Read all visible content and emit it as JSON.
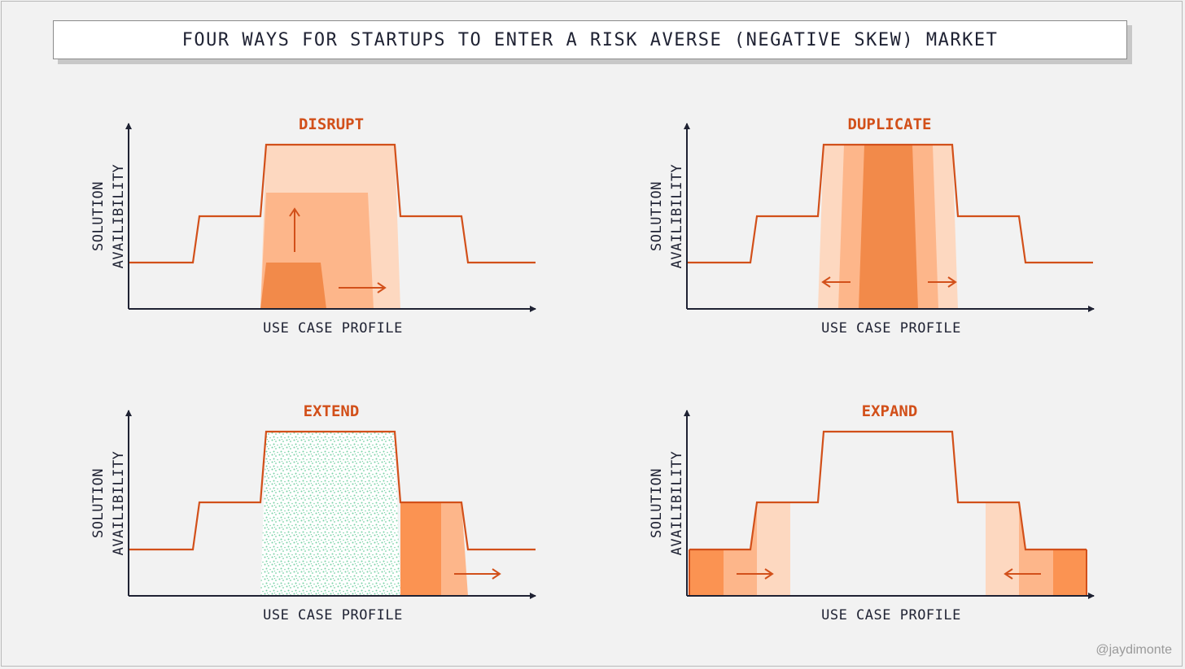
{
  "title": "FOUR WAYS FOR STARTUPS TO ENTER A RISK AVERSE (NEGATIVE SKEW) MARKET",
  "watermark": "@jaydimonte",
  "colors": {
    "accent": "#d2501a",
    "light": "#fdd8c0",
    "medium": "#fdb68a",
    "dark": "#f28a4a",
    "stronger": "#fb9352",
    "axis": "#1f2233",
    "texture": "#79d1a6"
  },
  "panels": [
    {
      "id": "disrupt",
      "title": "DISRUPT",
      "y_label_line1": "SOLUTION",
      "y_label_line2": "AVAILIBILITY",
      "x_label": "USE CASE PROFILE"
    },
    {
      "id": "duplicate",
      "title": "DUPLICATE",
      "y_label_line1": "SOLUTION",
      "y_label_line2": "AVAILIBILITY",
      "x_label": "USE CASE PROFILE"
    },
    {
      "id": "extend",
      "title": "EXTEND",
      "y_label_line1": "SOLUTION",
      "y_label_line2": "AVAILIBILITY",
      "x_label": "USE CASE PROFILE"
    },
    {
      "id": "expand",
      "title": "EXPAND",
      "y_label_line1": "SOLUTION",
      "y_label_line2": "AVAILIBILITY",
      "x_label": "USE CASE PROFILE"
    }
  ]
}
